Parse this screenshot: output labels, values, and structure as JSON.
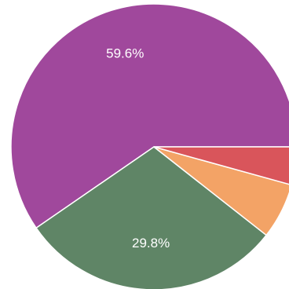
{
  "chart_data": {
    "type": "pie",
    "start_angle_deg": 0,
    "direction": "counterclockwise",
    "slices": [
      {
        "value": 59.6,
        "label": "59.6%",
        "color": "#a0489c"
      },
      {
        "value": 29.8,
        "label": "29.8%",
        "color": "#5f8566"
      },
      {
        "value": 6.3,
        "label": "",
        "color": "#f3a366"
      },
      {
        "value": 4.3,
        "label": "",
        "color": "#d9555b"
      }
    ]
  }
}
